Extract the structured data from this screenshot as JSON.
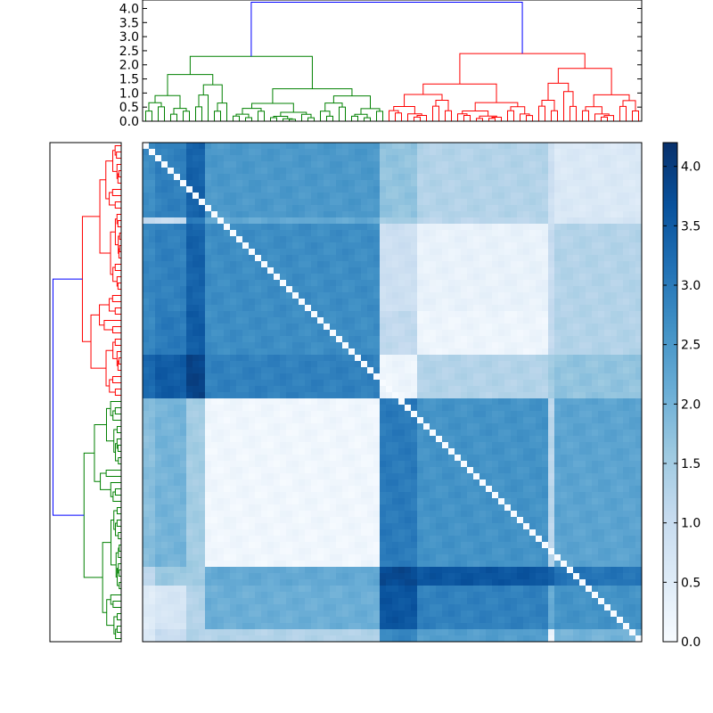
{
  "chart_data": [
    {
      "type": "dendrogram",
      "orientation": "top",
      "yticks": [
        "0.0",
        "0.5",
        "1.0",
        "1.5",
        "2.0",
        "2.5",
        "3.0",
        "3.5",
        "4.0"
      ],
      "ylim": [
        0,
        4.3
      ],
      "colors": {
        "root": "#0000ff",
        "cluster_a": "#008000",
        "cluster_b": "#ff0000"
      },
      "root_height": 4.22,
      "cluster_a": {
        "leaf_range": [
          0,
          39
        ],
        "height": 2.3,
        "sub_heights": [
          1.55,
          1.85,
          1.0,
          0.35,
          0.1
        ]
      },
      "cluster_b": {
        "leaf_range": [
          39,
          80
        ],
        "height": 2.4,
        "sub_heights": [
          2.0,
          1.45,
          0.9,
          0.5,
          0.2
        ]
      }
    },
    {
      "type": "dendrogram",
      "orientation": "left",
      "colors": {
        "root": "#0000ff",
        "cluster_a": "#008000",
        "cluster_b": "#ff0000"
      },
      "root_height": 4.22,
      "cluster_a_height": 2.3,
      "cluster_b_height": 2.4
    },
    {
      "type": "heatmap",
      "rows": 80,
      "cols": 80,
      "colormap": "Blues",
      "vmin": 0.0,
      "vmax": 4.2,
      "column_groups": [
        [
          0,
          2
        ],
        [
          2,
          7
        ],
        [
          7,
          10
        ],
        [
          10,
          38
        ],
        [
          38,
          44
        ],
        [
          44,
          65
        ],
        [
          65,
          66
        ],
        [
          66,
          80
        ]
      ],
      "row_groups": [
        [
          0,
          12
        ],
        [
          12,
          13
        ],
        [
          13,
          27
        ],
        [
          27,
          34
        ],
        [
          34,
          41
        ],
        [
          41,
          68
        ],
        [
          68,
          71
        ],
        [
          71,
          78
        ],
        [
          78,
          80
        ]
      ],
      "group_means": [
        [
          2.7,
          2.9,
          3.4,
          2.5,
          1.7,
          1.3,
          0.9,
          0.6
        ],
        [
          1.0,
          1.0,
          3.0,
          2.2,
          1.5,
          1.2,
          0.9,
          0.7
        ],
        [
          2.8,
          2.9,
          3.4,
          2.7,
          0.9,
          0.3,
          1.0,
          1.3
        ],
        [
          2.8,
          3.0,
          3.5,
          2.7,
          1.1,
          0.2,
          1.1,
          1.3
        ],
        [
          3.3,
          3.5,
          3.9,
          2.9,
          0.2,
          1.3,
          1.5,
          1.7
        ],
        [
          1.8,
          2.0,
          1.5,
          0.15,
          3.0,
          2.6,
          1.2,
          2.3
        ],
        [
          1.2,
          1.6,
          1.5,
          2.2,
          3.8,
          3.6,
          3.4,
          3.1
        ],
        [
          0.5,
          0.7,
          1.3,
          2.1,
          3.6,
          2.9,
          2.2,
          2.6
        ],
        [
          0.6,
          1.0,
          1.3,
          1.3,
          2.8,
          2.4,
          0.2,
          2.0
        ]
      ]
    },
    {
      "type": "colorbar",
      "colormap": "Blues",
      "range": [
        0.0,
        4.2
      ],
      "ticks": [
        "0.0",
        "0.5",
        "1.0",
        "1.5",
        "2.0",
        "2.5",
        "3.0",
        "3.5",
        "4.0"
      ]
    }
  ]
}
